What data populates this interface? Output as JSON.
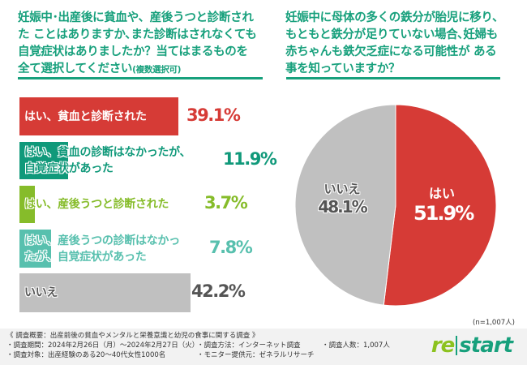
{
  "left_question": {
    "text": "妊娠中･出産後に貧血や、産後うつと診断された ことはありますか､また診断はされなくても 自覚症状はありましたか？当てはまるものを 全て選択してください",
    "note": "(複数選択可)"
  },
  "right_question": {
    "text": "妊娠中に母体の多くの鉄分が胎児に移り、 もともと鉄分が足りていない場合､妊婦も 赤ちゃんも鉄欠乏症になる可能性が ある事を知っていますか？"
  },
  "chart_data": [
    {
      "type": "bar",
      "orientation": "horizontal",
      "categories": [
        "はい、貧血と診断された",
        "はい、貧血の診断はなかったが、自覚症状があった",
        "はい、産後うつと診断された",
        "はい、産後うつの診断はなかったが、自覚症状があった",
        "いいえ"
      ],
      "values": [
        39.1,
        11.9,
        3.7,
        7.8,
        42.2
      ],
      "value_labels": [
        "39.1%",
        "11.9%",
        "3.7%",
        "7.8%",
        "42.2%"
      ],
      "colors": [
        "#d63b36",
        "#10997a",
        "#86bc2a",
        "#58c0ae",
        "#c0c0c0"
      ],
      "label_colors": [
        "#ffffff",
        "#10997a",
        "#86bc2a",
        "#58c0ae",
        "#555555"
      ],
      "value_colors": [
        "#d63b36",
        "#10997a",
        "#86bc2a",
        "#58c0ae",
        "#555555"
      ],
      "unit": "%"
    },
    {
      "type": "pie",
      "categories": [
        "はい",
        "いいえ"
      ],
      "values": [
        51.9,
        48.1
      ],
      "value_labels": [
        "51.9%",
        "48.1%"
      ],
      "colors": [
        "#d63b36",
        "#c0c0c0"
      ],
      "sample": "(n=1,007人)"
    }
  ],
  "footer": {
    "title": "《 調査概要：出産前後の貧血やメンタルと栄養意識と幼児の食事に関する調査 》",
    "period": "・調査期間：2024年2月26日（月）～2024年2月27日（火）",
    "method": "・調査方法：インターネット調査",
    "count": "・調査人数：1,007人",
    "target": "・調査対象：出産経験のある20～40代女性1000名",
    "provider": "・モニター提供元：ゼネラルリサーチ"
  },
  "logo": {
    "part1": "re",
    "part2": "start",
    "color1": "#8cc21f",
    "color2": "#17a07c"
  }
}
